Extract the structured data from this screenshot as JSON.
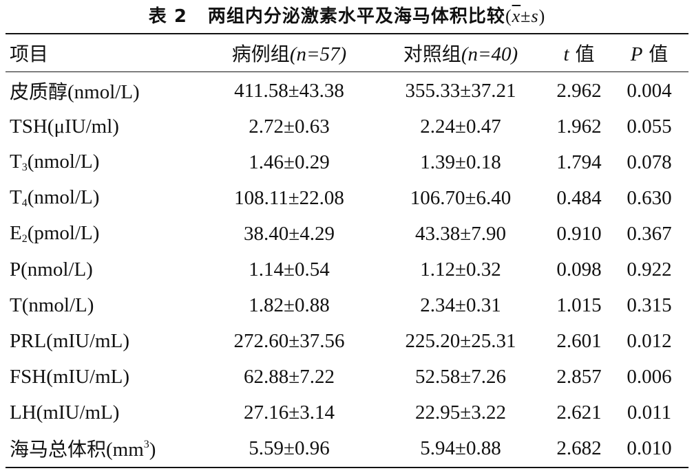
{
  "caption": {
    "number": "表 2",
    "title": "两组内分泌激素水平及海马体积比较",
    "stat_open": "(",
    "stat_xbar": "x",
    "stat_pm": "±",
    "stat_s": "s",
    "stat_close": ")"
  },
  "headers": {
    "item": "项目",
    "case_label": "病例组",
    "case_n": "(n=57)",
    "control_label": "对照组",
    "control_n": "(n=40)",
    "t_symbol": "t",
    "t_suffix": " 值",
    "p_symbol": "P",
    "p_suffix": " 值"
  },
  "rows": [
    {
      "item_prefix": "皮质醇",
      "item_main": "(nmol/L)",
      "item_sub": "",
      "item_rest": "",
      "item_sup": "",
      "item_end": "",
      "case": "411.58±43.38",
      "control": "355.33±37.21",
      "t": "2.962",
      "p": "0.004"
    },
    {
      "item_prefix": "",
      "item_main": "TSH(μIU/ml)",
      "item_sub": "",
      "item_rest": "",
      "item_sup": "",
      "item_end": "",
      "case": "2.72±0.63",
      "control": "2.24±0.47",
      "t": "1.962",
      "p": "0.055"
    },
    {
      "item_prefix": "",
      "item_main": "T",
      "item_sub": "3",
      "item_rest": "(nmol/L)",
      "item_sup": "",
      "item_end": "",
      "case": "1.46±0.29",
      "control": "1.39±0.18",
      "t": "1.794",
      "p": "0.078"
    },
    {
      "item_prefix": "",
      "item_main": "T",
      "item_sub": "4",
      "item_rest": "(nmol/L)",
      "item_sup": "",
      "item_end": "",
      "case": "108.11±22.08",
      "control": "106.70±6.40",
      "t": "0.484",
      "p": "0.630"
    },
    {
      "item_prefix": "",
      "item_main": "E",
      "item_sub": "2",
      "item_rest": "(pmol/L)",
      "item_sup": "",
      "item_end": "",
      "case": "38.40±4.29",
      "control": "43.38±7.90",
      "t": "0.910",
      "p": "0.367"
    },
    {
      "item_prefix": "",
      "item_main": "P(nmol/L)",
      "item_sub": "",
      "item_rest": "",
      "item_sup": "",
      "item_end": "",
      "case": "1.14±0.54",
      "control": "1.12±0.32",
      "t": "0.098",
      "p": "0.922"
    },
    {
      "item_prefix": "",
      "item_main": "T(nmol/L)",
      "item_sub": "",
      "item_rest": "",
      "item_sup": "",
      "item_end": "",
      "case": "1.82±0.88",
      "control": "2.34±0.31",
      "t": "1.015",
      "p": "0.315"
    },
    {
      "item_prefix": "",
      "item_main": "PRL(mIU/mL)",
      "item_sub": "",
      "item_rest": "",
      "item_sup": "",
      "item_end": "",
      "case": "272.60±37.56",
      "control": "225.20±25.31",
      "t": "2.601",
      "p": "0.012"
    },
    {
      "item_prefix": "",
      "item_main": "FSH(mIU/mL)",
      "item_sub": "",
      "item_rest": "",
      "item_sup": "",
      "item_end": "",
      "case": "62.88±7.22",
      "control": "52.58±7.26",
      "t": "2.857",
      "p": "0.006"
    },
    {
      "item_prefix": "",
      "item_main": "LH(mIU/mL)",
      "item_sub": "",
      "item_rest": "",
      "item_sup": "",
      "item_end": "",
      "case": "27.16±3.14",
      "control": "22.95±3.22",
      "t": "2.621",
      "p": "0.011"
    },
    {
      "item_prefix": "海马总体积",
      "item_main": "(mm",
      "item_sub": "",
      "item_rest": "",
      "item_sup": "3",
      "item_end": ")",
      "case": "5.59±0.96",
      "control": "5.94±0.88",
      "t": "2.682",
      "p": "0.010"
    }
  ]
}
